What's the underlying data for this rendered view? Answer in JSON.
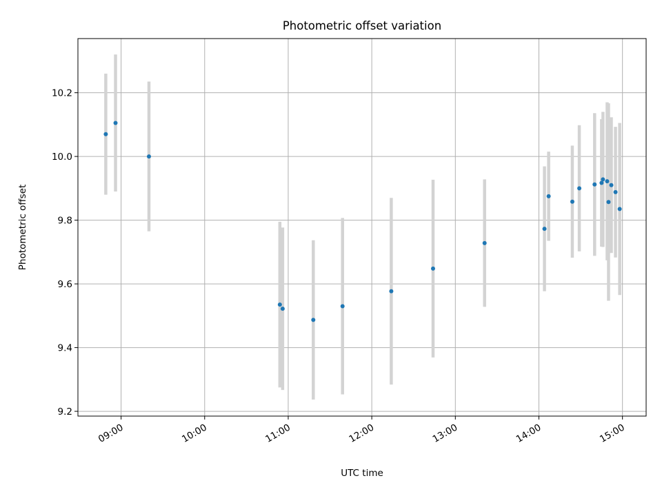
{
  "chart_data": {
    "type": "scatter",
    "title": "Photometric offset variation",
    "xlabel": "UTC time",
    "ylabel": "Photometric offset",
    "grid": true,
    "legend": "none",
    "x_ticks": [
      "09:00",
      "10:00",
      "11:00",
      "12:00",
      "13:00",
      "14:00",
      "15:00"
    ],
    "y_ticks": [
      "9.2",
      "9.4",
      "9.6",
      "9.8",
      "10.0",
      "10.2"
    ],
    "xlim": [
      "08:29",
      "15:17"
    ],
    "ylim": [
      9.185,
      10.37
    ],
    "colors": {
      "point": "#1f77b4",
      "errorbar": "#d3d3d3",
      "grid": "#b0b0b0"
    },
    "points": [
      {
        "x": "08:49",
        "y": 10.07,
        "yerr": 0.19
      },
      {
        "x": "08:56",
        "y": 10.105,
        "yerr": 0.215
      },
      {
        "x": "09:20",
        "y": 10.0,
        "yerr": 0.235
      },
      {
        "x": "10:54",
        "y": 9.535,
        "yerr": 0.26
      },
      {
        "x": "10:56",
        "y": 9.522,
        "yerr": 0.255
      },
      {
        "x": "11:18",
        "y": 9.487,
        "yerr": 0.25
      },
      {
        "x": "11:39",
        "y": 9.53,
        "yerr": 0.277
      },
      {
        "x": "12:14",
        "y": 9.577,
        "yerr": 0.293
      },
      {
        "x": "12:44",
        "y": 9.648,
        "yerr": 0.279
      },
      {
        "x": "13:21",
        "y": 9.728,
        "yerr": 0.2
      },
      {
        "x": "14:04",
        "y": 9.773,
        "yerr": 0.196
      },
      {
        "x": "14:07",
        "y": 9.875,
        "yerr": 0.14
      },
      {
        "x": "14:24",
        "y": 9.858,
        "yerr": 0.176
      },
      {
        "x": "14:29",
        "y": 9.9,
        "yerr": 0.198
      },
      {
        "x": "14:40",
        "y": 9.912,
        "yerr": 0.224
      },
      {
        "x": "14:45",
        "y": 9.917,
        "yerr": 0.2
      },
      {
        "x": "14:46",
        "y": 9.928,
        "yerr": 0.212
      },
      {
        "x": "14:49",
        "y": 9.922,
        "yerr": 0.248
      },
      {
        "x": "14:50",
        "y": 9.857,
        "yerr": 0.31
      },
      {
        "x": "14:52",
        "y": 9.91,
        "yerr": 0.213
      },
      {
        "x": "14:55",
        "y": 9.888,
        "yerr": 0.205
      },
      {
        "x": "14:58",
        "y": 9.835,
        "yerr": 0.27
      }
    ]
  }
}
